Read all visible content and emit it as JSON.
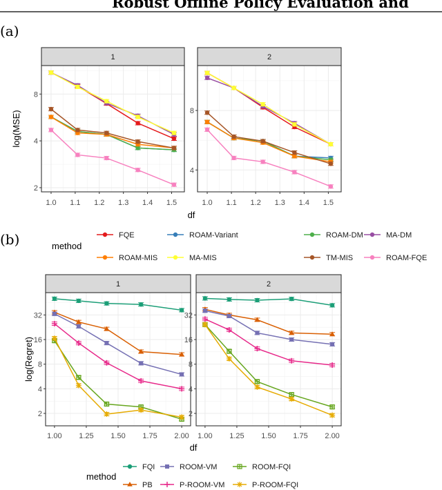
{
  "header": {
    "title": "Robust Offline Policy Evaluation and"
  },
  "figure_labels": {
    "a": "(a)",
    "b": "(b)"
  },
  "chart_data": [
    {
      "type": "line",
      "id": "a",
      "xlabel": "df",
      "ylabel": "log(MSE)",
      "yscale": "log2",
      "legend_title": "method",
      "legend_position": "bottom",
      "grid": true,
      "xticks": [
        1.0,
        1.1,
        1.2,
        1.3,
        1.4,
        1.5
      ],
      "xtick_labels": [
        "1.0",
        "1.1",
        "1.2",
        "1.3",
        "1.4",
        "1.5"
      ],
      "xlim": [
        0.96,
        1.553
      ],
      "legend": [
        "FQE",
        "ROAM-Variant",
        "ROAM-DM",
        "MA-DM",
        "ROAM-MIS",
        "MA-MIS",
        "TM-MIS",
        "ROAM-FQE"
      ],
      "colors": {
        "FQE": "#E41A1C",
        "ROAM-Variant": "#377EB8",
        "ROAM-DM": "#4DAF4A",
        "MA-DM": "#984EA3",
        "ROAM-MIS": "#FF7F00",
        "MA-MIS": "#FFFF33",
        "TM-MIS": "#A65628",
        "ROAM-FQE": "#F781BF"
      },
      "panels": [
        {
          "strip": "1",
          "ylim": [
            1.88,
            12.2
          ],
          "yticks": [
            2,
            4,
            8
          ],
          "ytick_labels": [
            "2",
            "4",
            "8"
          ],
          "x": [
            1.0,
            1.11,
            1.23,
            1.36,
            1.51
          ],
          "series": [
            {
              "name": "ROAM-FQE",
              "values": [
                4.7,
                3.25,
                3.1,
                2.6,
                2.09
              ]
            },
            {
              "name": "ROAM-Variant",
              "values": [
                5.7,
                4.6,
                4.4,
                3.6,
                3.5
              ]
            },
            {
              "name": "ROAM-DM",
              "values": [
                5.7,
                4.6,
                4.4,
                3.6,
                3.5
              ]
            },
            {
              "name": "ROAM-MIS",
              "values": [
                5.7,
                4.5,
                4.4,
                3.8,
                3.6
              ]
            },
            {
              "name": "TM-MIS",
              "values": [
                6.4,
                4.7,
                4.5,
                3.96,
                3.6
              ]
            },
            {
              "name": "FQE",
              "values": [
                11.0,
                9.0,
                6.95,
                5.2,
                4.13
              ]
            },
            {
              "name": "MA-DM",
              "values": [
                11.0,
                9.1,
                7.0,
                5.8,
                4.4
              ]
            },
            {
              "name": "MA-MIS",
              "values": [
                11.0,
                8.9,
                7.2,
                5.7,
                4.5
              ]
            }
          ]
        },
        {
          "strip": "2",
          "ylim": [
            3.1,
            13.5
          ],
          "yticks": [
            4,
            8
          ],
          "ytick_labels": [
            "4",
            "8"
          ],
          "x": [
            1.0,
            1.11,
            1.23,
            1.36,
            1.51
          ],
          "series": [
            {
              "name": "ROAM-FQE",
              "values": [
                6.4,
                4.6,
                4.4,
                3.9,
                3.3
              ]
            },
            {
              "name": "ROAM-Variant",
              "values": [
                7.0,
                5.8,
                5.6,
                4.7,
                4.6
              ]
            },
            {
              "name": "ROAM-DM",
              "values": [
                7.0,
                5.8,
                5.6,
                4.7,
                4.5
              ]
            },
            {
              "name": "ROAM-MIS",
              "values": [
                7.0,
                5.8,
                5.5,
                4.7,
                4.4
              ]
            },
            {
              "name": "TM-MIS",
              "values": [
                7.8,
                5.9,
                5.6,
                4.9,
                4.3
              ]
            },
            {
              "name": "FQE",
              "values": [
                12.4,
                10.4,
                8.3,
                6.6,
                5.4
              ]
            },
            {
              "name": "MA-DM",
              "values": [
                11.7,
                10.4,
                8.4,
                6.9,
                5.4
              ]
            },
            {
              "name": "MA-MIS",
              "values": [
                12.4,
                10.4,
                8.6,
                6.8,
                5.4
              ]
            }
          ]
        }
      ]
    },
    {
      "type": "line",
      "id": "b",
      "xlabel": "df",
      "ylabel": "log(Regret)",
      "yscale": "log2",
      "legend_title": "method",
      "legend_position": "bottom",
      "grid": true,
      "xticks": [
        1.0,
        1.25,
        1.5,
        1.75,
        2.0
      ],
      "xtick_labels": [
        "1.00",
        "1.25",
        "1.50",
        "1.75",
        "2.00"
      ],
      "xlim": [
        0.93,
        2.07
      ],
      "legend": [
        "FQI",
        "ROOM-VM",
        "ROOM-FQI",
        "PB",
        "P-ROOM-VM",
        "P-ROOM-FQI"
      ],
      "colors": {
        "FQI": "#1B9E77",
        "PB": "#D95F02",
        "ROOM-VM": "#7570B3",
        "P-ROOM-VM": "#E7298A",
        "ROOM-FQI": "#66A61E",
        "P-ROOM-FQI": "#E6AB02"
      },
      "panels": [
        {
          "strip": "1",
          "ylim": [
            1.41,
            60
          ],
          "yticks": [
            2,
            4,
            8,
            16,
            32
          ],
          "ytick_labels": [
            "2",
            "4",
            "8",
            "16",
            "32"
          ],
          "x": [
            1.0,
            1.19,
            1.41,
            1.68,
            2.0
          ],
          "series": [
            {
              "name": "FQI",
              "values": [
                50.5,
                47.6,
                44.3,
                43,
                36.6
              ]
            },
            {
              "name": "PB",
              "values": [
                34.5,
                26.2,
                21.6,
                11.4,
                10.5
              ]
            },
            {
              "name": "ROOM-VM",
              "values": [
                33,
                23.2,
                14.5,
                8.2,
                6.0
              ]
            },
            {
              "name": "P-ROOM-VM",
              "values": [
                25,
                14.5,
                8.3,
                5.0,
                4.0
              ]
            },
            {
              "name": "ROOM-FQI",
              "values": [
                15.5,
                5.5,
                2.6,
                2.4,
                1.7
              ]
            },
            {
              "name": "P-ROOM-FQI",
              "values": [
                16.6,
                4.4,
                1.96,
                2.2,
                1.8
              ]
            }
          ]
        },
        {
          "strip": "2",
          "ylim": [
            1.41,
            60
          ],
          "yticks": [
            2,
            4,
            8,
            16,
            32
          ],
          "ytick_labels": [
            "2",
            "4",
            "8",
            "16",
            "32"
          ],
          "x": [
            1.0,
            1.19,
            1.41,
            1.68,
            2.0
          ],
          "series": [
            {
              "name": "FQI",
              "values": [
                51,
                49.5,
                48.5,
                50.3,
                42
              ]
            },
            {
              "name": "PB",
              "values": [
                37.5,
                32,
                27.9,
                19.3,
                18.6
              ]
            },
            {
              "name": "ROOM-VM",
              "values": [
                36,
                31,
                19.3,
                16,
                14
              ]
            },
            {
              "name": "P-ROOM-VM",
              "values": [
                28.5,
                21,
                12.4,
                8.8,
                7.8
              ]
            },
            {
              "name": "ROOM-FQI",
              "values": [
                24.4,
                11.5,
                4.9,
                3.4,
                2.4
              ]
            },
            {
              "name": "P-ROOM-FQI",
              "values": [
                24.4,
                9.3,
                4.2,
                3.0,
                1.9
              ]
            }
          ]
        }
      ]
    }
  ]
}
